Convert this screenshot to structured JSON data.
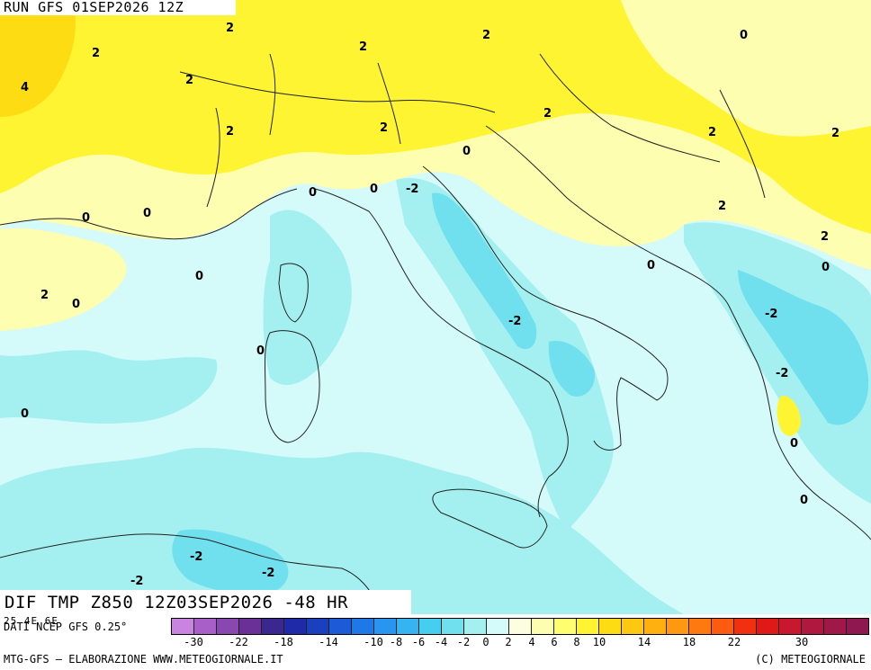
{
  "header": {
    "run_label": "RUN GFS 01SEP2026 12Z"
  },
  "field": {
    "title": "DIF TMP Z850 12Z03SEP2026 -48 HR"
  },
  "source": {
    "label": "DATI NCEP GFS 0.25°",
    "edge_ticks": "25 4E 6E"
  },
  "colorbar": {
    "colors": [
      "#c884e0",
      "#a860c8",
      "#8848b0",
      "#6a3098",
      "#3a2890",
      "#1e2aa8",
      "#1a40c0",
      "#1c5ad8",
      "#1e78e8",
      "#2896f0",
      "#34b4f0",
      "#46cef0",
      "#70e0ee",
      "#a4f0f0",
      "#d4fafa",
      "#fdfde0",
      "#fefeb0",
      "#fefe70",
      "#fef432",
      "#fedc14",
      "#fec810",
      "#feb010",
      "#fe9810",
      "#fe7a10",
      "#fe5a10",
      "#f03010",
      "#e01818",
      "#c81830",
      "#b01840",
      "#a01848",
      "#901850"
    ],
    "tick_labels": [
      "-30",
      "-22",
      "-18",
      "-14",
      "-10",
      "-8",
      "-6",
      "-4",
      "-2",
      "0",
      "2",
      "4",
      "6",
      "8",
      "10",
      "14",
      "18",
      "22",
      "30"
    ]
  },
  "map": {
    "contour_labels": [
      "2",
      "2",
      "2",
      "2",
      "0",
      "4",
      "2",
      "2",
      "2",
      "2",
      "0",
      "2",
      "2",
      "0",
      "0",
      "-2",
      "2",
      "0",
      "0",
      "0",
      "2",
      "2",
      "0",
      "0",
      "-2",
      "-2",
      "0",
      "-2",
      "0",
      "0",
      "-2",
      "-2",
      "-2"
    ]
  },
  "footer": {
    "left": "MTG-GFS – ELABORAZIONE WWW.METEOGIORNALE.IT",
    "right": "(C) METEOGIORNALE"
  }
}
